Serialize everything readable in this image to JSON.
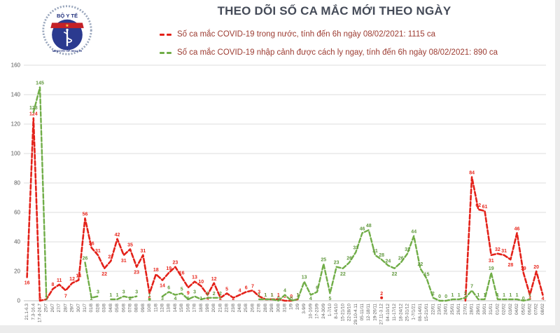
{
  "header": {
    "title": "THEO DÕI SỐ CA MẮC MỚI THEO NGÀY"
  },
  "logo": {
    "top_text": "BỘ Y TẾ",
    "bottom_text": "MINISTRY OF HEALTH",
    "emblem_icon": "staff-of-asclepius-icon",
    "star_glyph": "★",
    "colors": {
      "disk": "#2b3a8f",
      "band": "#c42127",
      "star": "#ffd24a",
      "text": "#24337f"
    }
  },
  "legend": {
    "items": [
      {
        "label": "Số ca mắc COVID-19 trong nước, tính đến 6h ngày 08/02/2021: 1115 ca",
        "color": "#e32119"
      },
      {
        "label": "Số ca mắc COVID-19 nhập cảnh được cách ly ngay, tính đến 6h ngày 08/02/2021: 890 ca",
        "color": "#70ad47"
      }
    ]
  },
  "chart_data": {
    "type": "line",
    "title": "THEO DÕI SỐ CA MẮC MỚI THEO NGÀY",
    "xlabel": "",
    "ylabel": "",
    "ylim": [
      0,
      160
    ],
    "yticks": [
      0,
      20,
      40,
      60,
      80,
      100,
      120,
      140,
      160
    ],
    "grid": true,
    "legend_position": "top-left",
    "line_style": "dashed",
    "categories": [
      "21.1-6.3",
      "7.3-16.4",
      "17.4-24.7",
      "25/7",
      "26/7",
      "27/7",
      "28/7",
      "29/7",
      "30/7",
      "31/7",
      "01/8",
      "02/8",
      "03/8",
      "04/8",
      "05/8",
      "06/8",
      "07/8",
      "08/8",
      "09/8",
      "10/8",
      "11/8",
      "12/8",
      "13/8",
      "14/8",
      "15/8",
      "16/8",
      "17/8",
      "18/8",
      "19/8",
      "20/8",
      "21/8",
      "22/8",
      "23/8",
      "24/8",
      "25/8",
      "26/8",
      "27/8",
      "28/8",
      "29/8",
      "30/8",
      "31/8",
      "1/9",
      "2/9",
      "3-9/9",
      "10-16/9",
      "17-23/9",
      "24-30/9",
      "1-7/10",
      "8-14/10",
      "15-21/10",
      "22-28/10",
      "29.10-4.11",
      "05-11/11",
      "12-18/11",
      "19-26/11",
      "27.11-3.12",
      "04-10/12",
      "11-17/12",
      "18-24/12",
      "25-31/12",
      "1-7/1/21",
      "08-14/01",
      "15-21/01",
      "22/01",
      "23/01",
      "24/01",
      "25/01",
      "26/01",
      "27/01",
      "28/01",
      "29/01",
      "30/01",
      "31/01",
      "01/02",
      "02/02",
      "03/02",
      "04/02",
      "05/02",
      "06/02",
      "07/02",
      "08/02"
    ],
    "series": [
      {
        "name": "Số ca mắc COVID-19 trong nước",
        "color": "#e32119",
        "label_color": "#e8281e",
        "values": [
          16,
          124,
          0,
          1,
          8,
          11,
          7,
          12,
          14,
          56,
          36,
          31,
          22,
          27,
          42,
          31,
          35,
          23,
          31,
          5,
          18,
          14,
          19,
          23,
          16,
          9,
          13,
          10,
          4,
          12,
          2,
          5,
          2,
          4,
          6,
          7,
          3,
          1,
          1,
          1,
          0,
          0,
          1,
          null,
          null,
          null,
          null,
          null,
          null,
          null,
          null,
          null,
          null,
          null,
          null,
          2,
          null,
          null,
          null,
          null,
          null,
          null,
          null,
          null,
          null,
          null,
          null,
          null,
          0,
          84,
          62,
          61,
          31,
          32,
          31,
          28,
          46,
          19,
          4,
          20,
          4
        ]
      },
      {
        "name": "Số ca mắc COVID-19 nhập cảnh được cách ly ngay",
        "color": "#70ad47",
        "label_color": "#62993f",
        "values": [
          null,
          128,
          145,
          3,
          null,
          null,
          null,
          null,
          null,
          26,
          2,
          3,
          null,
          1,
          1,
          3,
          2,
          3,
          null,
          1,
          null,
          3,
          6,
          4,
          5,
          1,
          3,
          1,
          2,
          2,
          2,
          null,
          null,
          null,
          null,
          null,
          1,
          1,
          1,
          0,
          4,
          0,
          1,
          13,
          4,
          6,
          25,
          5,
          23,
          22,
          26,
          33,
          46,
          48,
          31,
          28,
          24,
          22,
          26,
          32,
          44,
          22,
          15,
          2,
          0,
          0,
          1,
          1,
          2,
          7,
          1,
          1,
          19,
          1,
          1,
          1,
          1,
          0,
          1,
          null,
          null
        ]
      }
    ]
  }
}
